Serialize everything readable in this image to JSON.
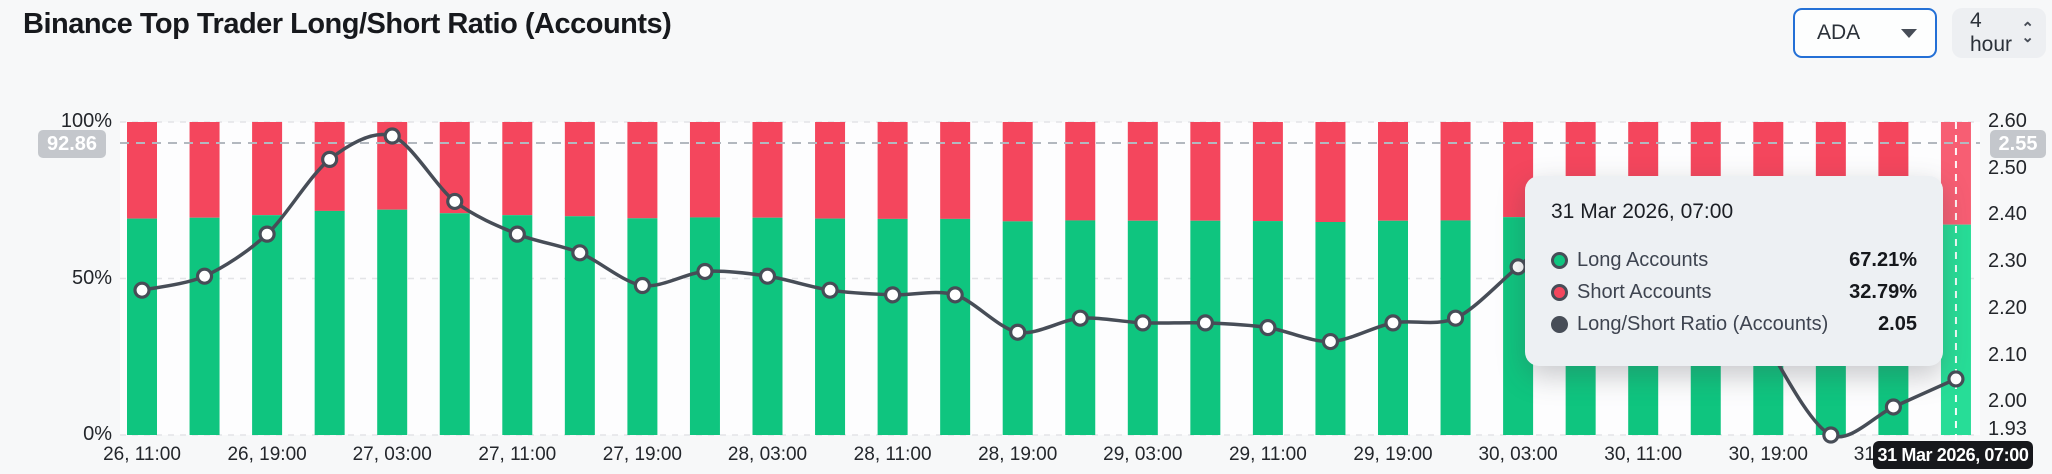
{
  "header": {
    "title": "Binance Top Trader Long/Short Ratio (Accounts)",
    "symbol_select": {
      "value": "ADA"
    },
    "interval_select": {
      "value": "4 hour"
    }
  },
  "chart_data": {
    "type": "bar",
    "subtype": "stacked-bar-with-line-overlay",
    "title": "Binance Top Trader Long/Short Ratio (Accounts)",
    "categories": [
      "26, 11:00",
      "26, 15:00",
      "26, 19:00",
      "26, 23:00",
      "27, 03:00",
      "27, 07:00",
      "27, 11:00",
      "27, 15:00",
      "27, 19:00",
      "27, 23:00",
      "28, 03:00",
      "28, 07:00",
      "28, 11:00",
      "28, 15:00",
      "28, 19:00",
      "28, 23:00",
      "29, 03:00",
      "29, 07:00",
      "29, 11:00",
      "29, 15:00",
      "29, 19:00",
      "29, 23:00",
      "30, 03:00",
      "30, 07:00",
      "30, 11:00",
      "30, 15:00",
      "30, 19:00",
      "30, 23:00",
      "31, 03:00",
      "31, 07:00"
    ],
    "x_tick_every": 2,
    "series": [
      {
        "name": "Long Accounts",
        "type": "bar",
        "axis": "left",
        "unit": "%",
        "values": [
          69.14,
          69.42,
          70.24,
          71.59,
          71.99,
          70.85,
          70.24,
          69.88,
          69.23,
          69.51,
          69.42,
          69.14,
          69.04,
          69.04,
          68.25,
          68.55,
          68.45,
          68.45,
          68.35,
          68.05,
          68.45,
          68.55,
          69.6,
          70.59,
          71.1,
          70.59,
          67.95,
          65.87,
          66.56,
          67.21
        ]
      },
      {
        "name": "Short Accounts",
        "type": "bar",
        "axis": "left",
        "unit": "%",
        "values": [
          30.86,
          30.58,
          29.76,
          28.41,
          28.01,
          29.15,
          29.76,
          30.12,
          30.77,
          30.49,
          30.58,
          30.86,
          30.96,
          30.96,
          31.75,
          31.45,
          31.55,
          31.55,
          31.65,
          31.95,
          31.55,
          31.45,
          30.4,
          29.41,
          28.9,
          29.41,
          32.05,
          34.13,
          33.44,
          32.79
        ]
      },
      {
        "name": "Long/Short Ratio (Accounts)",
        "type": "line",
        "axis": "right",
        "values": [
          2.24,
          2.27,
          2.36,
          2.52,
          2.57,
          2.43,
          2.36,
          2.32,
          2.25,
          2.28,
          2.27,
          2.24,
          2.23,
          2.23,
          2.15,
          2.18,
          2.17,
          2.17,
          2.16,
          2.13,
          2.17,
          2.18,
          2.29,
          2.4,
          2.46,
          2.4,
          2.12,
          1.93,
          1.99,
          2.05
        ]
      }
    ],
    "left_axis": {
      "ticks": [
        "100%",
        "50%",
        "0%"
      ],
      "range": [
        0,
        100
      ]
    },
    "right_axis": {
      "ticks": [
        "2.60",
        "2.50",
        "2.40",
        "2.30",
        "2.20",
        "2.10",
        "2.00",
        "1.93"
      ],
      "range": [
        1.93,
        2.6
      ]
    },
    "grid": "dashed-horizontal",
    "legend": "none",
    "hover_index": 29
  },
  "crosshair": {
    "left_label": "92.86",
    "right_label": "2.55",
    "bottom_label": "31 Mar 2026, 07:00"
  },
  "tooltip": {
    "title": "31 Mar 2026, 07:00",
    "rows": [
      {
        "label": "Long Accounts",
        "value": "67.21%"
      },
      {
        "label": "Short Accounts",
        "value": "32.79%"
      },
      {
        "label": "Long/Short Ratio (Accounts)",
        "value": "2.05"
      }
    ]
  },
  "colors": {
    "long": "#0fc57f",
    "short": "#f4465d",
    "long_highlight": "#27dd97",
    "short_highlight": "#f75e73",
    "ratio_line": "#474d57",
    "marker_fill": "#ffffff",
    "grid": "#e3e4e7",
    "crosshair_h": "#b3b8bf",
    "crosshair_v": "#ffffff",
    "plot_bg": "#fdfdfe",
    "select_accent_border": "#2470d6",
    "badge_gray": "#c4c7cc",
    "badge_black": "#17181c"
  }
}
